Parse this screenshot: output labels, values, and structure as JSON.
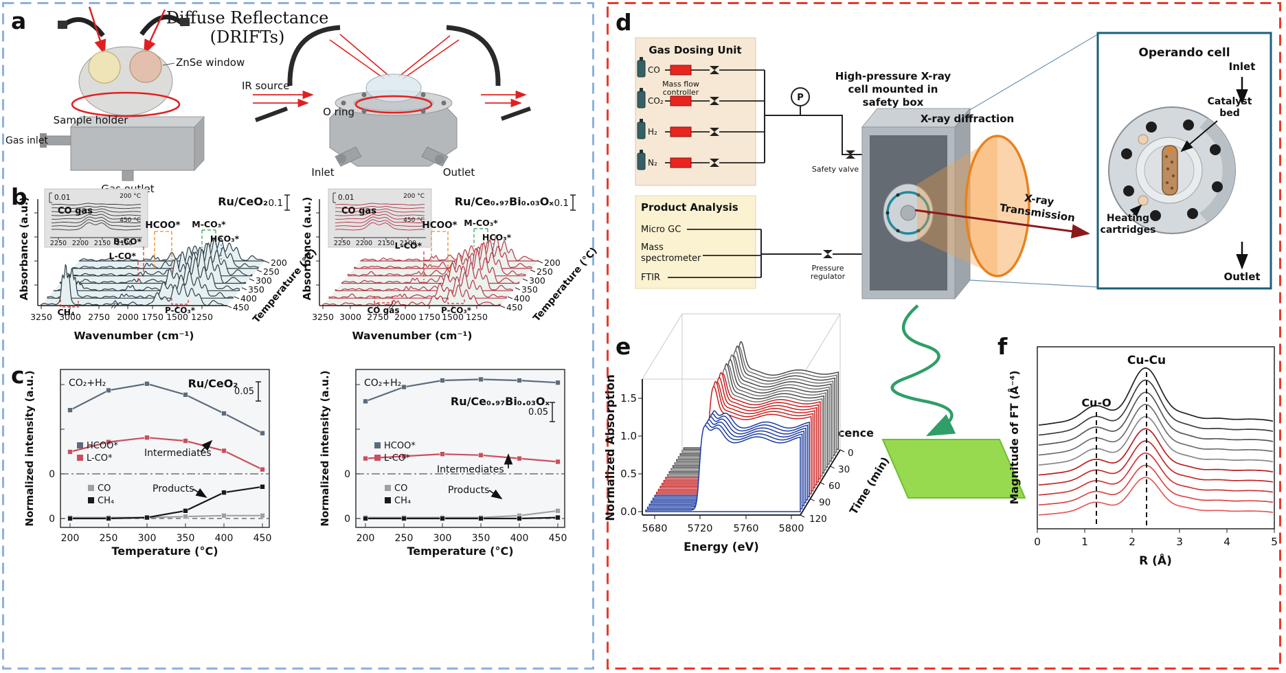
{
  "borders": {
    "left_color": "#8fb0dd",
    "right_color": "#e8392b"
  },
  "panel_a": {
    "label": "a",
    "title1": "Diffuse Reflectance",
    "title2": "(DRIFTs)",
    "znse": "ZnSe window",
    "sample_holder": "Sample holder",
    "gas_inlet": "Gas inlet",
    "gas_outlet": "Gas outlet",
    "ir_source": "IR  source",
    "o_ring": "O ring",
    "inlet": "Inlet",
    "outlet": "Outlet"
  },
  "panel_b": {
    "label": "b",
    "ylabel": "Absorbance (a.u.)",
    "xlabel": "Wavenumber (cm⁻¹)",
    "tlabel": "Temperature (°C)",
    "xticks": [
      "3250",
      "3000",
      "2750",
      "2000",
      "1750",
      "1500",
      "1250"
    ],
    "tticks": [
      "200",
      "250",
      "300",
      "350",
      "400",
      "450"
    ],
    "scale": "0.1",
    "inset": {
      "scale": "0.01",
      "gas": "CO gas",
      "t_hi": "200 °C",
      "t_lo": "450 °C",
      "ticks": [
        "2250",
        "2200",
        "2150",
        "2100"
      ]
    },
    "left": {
      "title": "Ru/CeO₂",
      "ann": {
        "hcoo": "HCOO*",
        "bco": "B-CO*",
        "lco": "L-CO*",
        "mco3": "M-CO₃*",
        "hco3": "HCO₃*",
        "ch4": "CH₄",
        "pco3": "P-CO₃*"
      }
    },
    "right": {
      "title": "Ru/Ce₀.₉₇Bi₀.₀₃Oₓ",
      "ann": {
        "hcoo": "HCOO*",
        "lco": "L-CO*",
        "mco3": "M-CO₃*",
        "hco3": "HCO₃*",
        "cogas": "CO gas",
        "pco3": "P-CO₃*"
      }
    }
  },
  "panel_c": {
    "label": "c",
    "ylabel": "Normalized intensity (a.u.)",
    "xlabel": "Temperature (°C)",
    "xticks": [
      "200",
      "250",
      "300",
      "350",
      "400",
      "450"
    ],
    "zero": "0",
    "left": {
      "condition": "CO₂+H₂",
      "title": "Ru/CeO₂",
      "scale": "0.05",
      "intermediates": "Intermediates",
      "products": "Products",
      "legend1": [
        "HCOO*",
        "L-CO*"
      ],
      "legend2": [
        "CO",
        "CH₄"
      ]
    },
    "right": {
      "condition": "CO₂+H₂",
      "title": "Ru/Ce₀.₉₇Bi₀.₀₃Oₓ",
      "scale": "0.05",
      "intermediates": "Intermediates",
      "products": "Products",
      "legend1": [
        "HCOO*",
        "L-CO*"
      ],
      "legend2": [
        "CO",
        "CH₄"
      ]
    }
  },
  "panel_d": {
    "label": "d",
    "gas_unit_title": "Gas Dosing Unit",
    "gases": [
      "CO",
      "CO₂",
      "H₂",
      "N₂"
    ],
    "mfc1": "Mass flow",
    "mfc2": "controller",
    "p_gauge": "P",
    "safety_valve": "Safety valve",
    "cell_caption1": "High-pressure X-ray",
    "cell_caption2": "cell mounted in",
    "cell_caption3": "safety box",
    "xrd_label": "X-ray diffraction",
    "trans1": "X-ray",
    "trans2": "Transmission",
    "fluorescence": "Fluorescence",
    "product_title": "Product Analysis",
    "product1": "Micro GC",
    "product2a": "Mass",
    "product2b": "spectrometer",
    "product3": "FTIR",
    "preg1": "Pressure",
    "preg2": "regulator",
    "operando_italic": "Operando",
    "operando_rest": " cell",
    "inlet": "Inlet",
    "outlet": "Outlet",
    "catalyst1": "Catalyst",
    "catalyst2": "bed",
    "heating1": "Heating",
    "heating2": "cartridges"
  },
  "panel_e": {
    "label": "e",
    "ylabel": "Normalized Absorption",
    "yticks": [
      "0.0",
      "0.5",
      "1.0",
      "1.5"
    ],
    "xlabel": "Energy (eV)",
    "xticks": [
      "5680",
      "5720",
      "5760",
      "5800"
    ],
    "zlabel": "Time (min)",
    "zticks": [
      "0",
      "30",
      "60",
      "90",
      "120"
    ]
  },
  "panel_f": {
    "label": "f",
    "ylabel": "Magnitude of FT (Å⁻⁴)",
    "xlabel": "R (Å)",
    "xticks": [
      "0",
      "1",
      "2",
      "3",
      "4",
      "5"
    ],
    "cuo": "Cu-O",
    "cucu": "Cu-Cu"
  },
  "chart_data": [
    {
      "id": "b_left",
      "type": "area",
      "variant": "3d-waterfall-drifts",
      "title": "Ru/CeO₂",
      "xlabel": "Wavenumber (cm⁻¹)",
      "x_ticks": [
        3250,
        3000,
        2750,
        2000,
        1750,
        1500,
        1250
      ],
      "x_axis_break": [
        2750,
        2000
      ],
      "ylabel": "Absorbance (a.u.)",
      "scale_bar": 0.1,
      "z_label": "Temperature (°C)",
      "z_ticks": [
        200,
        250,
        300,
        350,
        400,
        450
      ],
      "inset": {
        "label": "CO gas",
        "scale_bar": 0.01,
        "x_ticks": [
          2250,
          2200,
          2150,
          2100
        ],
        "temp_range": [
          "200 °C",
          "450 °C"
        ]
      },
      "annotated_bands": [
        "CH₄",
        "B-CO*",
        "L-CO*",
        "HCOO*",
        "M-CO₃*",
        "HCO₃*",
        "P-CO₃*"
      ],
      "curve_color": "#2e3d45"
    },
    {
      "id": "b_right",
      "type": "area",
      "variant": "3d-waterfall-drifts",
      "title": "Ru/Ce₀.₉₇Bi₀.₀₃Oₓ",
      "xlabel": "Wavenumber (cm⁻¹)",
      "x_ticks": [
        3250,
        3000,
        2750,
        2000,
        1750,
        1500,
        1250
      ],
      "x_axis_break": [
        2750,
        2000
      ],
      "ylabel": "Absorbance (a.u.)",
      "scale_bar": 0.1,
      "z_label": "Temperature (°C)",
      "z_ticks": [
        200,
        250,
        300,
        350,
        400,
        450
      ],
      "inset": {
        "label": "CO gas",
        "scale_bar": 0.01,
        "x_ticks": [
          2250,
          2200,
          2150,
          2100
        ],
        "temp_range": [
          "200 °C",
          "450 °C"
        ]
      },
      "annotated_bands": [
        "CO gas",
        "L-CO*",
        "HCOO*",
        "M-CO₃*",
        "HCO₃*",
        "P-CO₃*"
      ],
      "curve_color": "#b5384a"
    },
    {
      "id": "c_left",
      "type": "line",
      "title": "Ru/CeO₂",
      "condition": "CO₂+H₂",
      "xlabel": "Temperature (°C)",
      "ylabel": "Normalized intensity (a.u.)",
      "scale_bar": 0.05,
      "x": [
        200,
        250,
        300,
        350,
        400,
        450
      ],
      "series": [
        {
          "name": "HCOO*",
          "group": "intermediates",
          "color": "#5c6b7c",
          "values": [
            0.58,
            0.76,
            0.82,
            0.72,
            0.55,
            0.37
          ]
        },
        {
          "name": "L-CO*",
          "group": "intermediates",
          "color": "#c94f5e",
          "values": [
            0.2,
            0.29,
            0.33,
            0.3,
            0.21,
            0.04
          ]
        },
        {
          "name": "CO",
          "group": "products",
          "color": "#a0a0a0",
          "values": [
            0.01,
            0.01,
            0.01,
            0.02,
            0.03,
            0.03
          ]
        },
        {
          "name": "CH₄",
          "group": "products",
          "color": "#1a1a1a",
          "values": [
            0.0,
            0.0,
            0.01,
            0.08,
            0.27,
            0.33
          ]
        }
      ]
    },
    {
      "id": "c_right",
      "type": "line",
      "title": "Ru/Ce₀.₉₇Bi₀.₀₃Oₓ",
      "condition": "CO₂+H₂",
      "xlabel": "Temperature (°C)",
      "ylabel": "Normalized intensity (a.u.)",
      "scale_bar": 0.05,
      "x": [
        200,
        250,
        300,
        350,
        400,
        450
      ],
      "series": [
        {
          "name": "HCOO*",
          "group": "intermediates",
          "color": "#5c6b7c",
          "values": [
            0.66,
            0.79,
            0.85,
            0.86,
            0.85,
            0.83
          ]
        },
        {
          "name": "L-CO*",
          "group": "intermediates",
          "color": "#c94f5e",
          "values": [
            0.14,
            0.16,
            0.18,
            0.17,
            0.14,
            0.11
          ]
        },
        {
          "name": "CO",
          "group": "products",
          "color": "#a0a0a0",
          "values": [
            0.01,
            0.01,
            0.01,
            0.01,
            0.03,
            0.08
          ]
        },
        {
          "name": "CH₄",
          "group": "products",
          "color": "#1a1a1a",
          "values": [
            0.0,
            0.0,
            0.0,
            0.0,
            0.0,
            0.01
          ]
        }
      ]
    },
    {
      "id": "e",
      "type": "area",
      "variant": "3d-waterfall-xanes",
      "xlabel": "Energy (eV)",
      "x_ticks": [
        5680,
        5720,
        5760,
        5800
      ],
      "ylabel": "Normalized Absorption",
      "y_ticks": [
        0.0,
        0.5,
        1.0,
        1.5
      ],
      "z_label": "Time (min)",
      "z_ticks": [
        0,
        30,
        60,
        90,
        120
      ],
      "series_groups": [
        {
          "color": "gray",
          "count": 10,
          "position": "back"
        },
        {
          "color": "red",
          "count": 6,
          "position": "middle"
        },
        {
          "color": "blue",
          "count": 6,
          "position": "front"
        }
      ]
    },
    {
      "id": "f",
      "type": "line",
      "variant": "exafs-ft",
      "xlabel": "R (Å)",
      "x_ticks": [
        0,
        1,
        2,
        3,
        4,
        5
      ],
      "ylabel": "Magnitude of FT (Å⁻⁴)",
      "x_range": [
        0,
        5
      ],
      "peaks": [
        {
          "label": "Cu-O",
          "R": 1.25
        },
        {
          "label": "Cu-Cu",
          "R": 2.3
        }
      ],
      "curve_groups": [
        {
          "color": "gray",
          "count": 5
        },
        {
          "color": "red",
          "count": 5
        }
      ]
    }
  ]
}
